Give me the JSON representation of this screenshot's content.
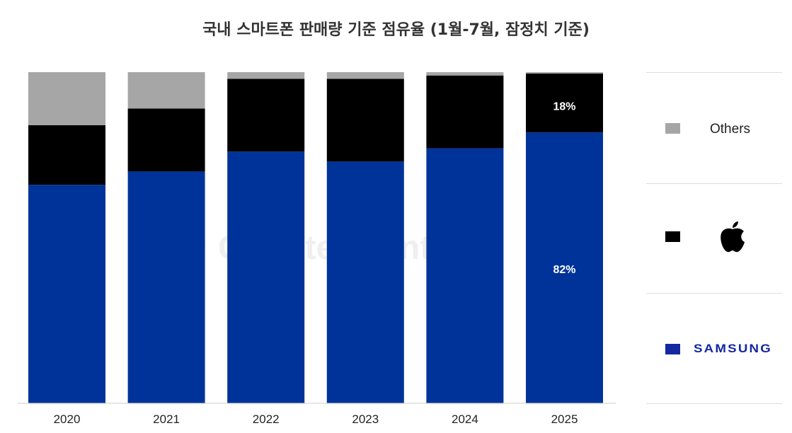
{
  "chart_data": {
    "type": "bar",
    "stacked": true,
    "title": "국내 스마트폰 판매량 기준 점유율 (1월-7월, 잠정치 기준)",
    "categories": [
      "2020",
      "2021",
      "2022",
      "2023",
      "2024",
      "2025"
    ],
    "ylim": [
      0,
      100
    ],
    "grid": false,
    "legend_placement": "right",
    "series": [
      {
        "name": "SAMSUNG",
        "color": "#003399",
        "values": [
          66,
          70,
          76,
          73,
          77,
          81.8
        ]
      },
      {
        "name": "Apple",
        "color": "#000000",
        "values": [
          18,
          19,
          22,
          25,
          22,
          17.8
        ]
      },
      {
        "name": "Others",
        "color": "#a6a6a6",
        "values": [
          16,
          11,
          2,
          2,
          1,
          0.4
        ]
      }
    ],
    "data_labels": [
      {
        "category": "2025",
        "series": "Apple",
        "text": "18%"
      },
      {
        "category": "2025",
        "series": "SAMSUNG",
        "text": "82%"
      }
    ]
  },
  "legend": {
    "others": "Others",
    "apple": "apple-logo",
    "samsung": "SAMSUNG"
  },
  "watermark": "Counterpoint"
}
